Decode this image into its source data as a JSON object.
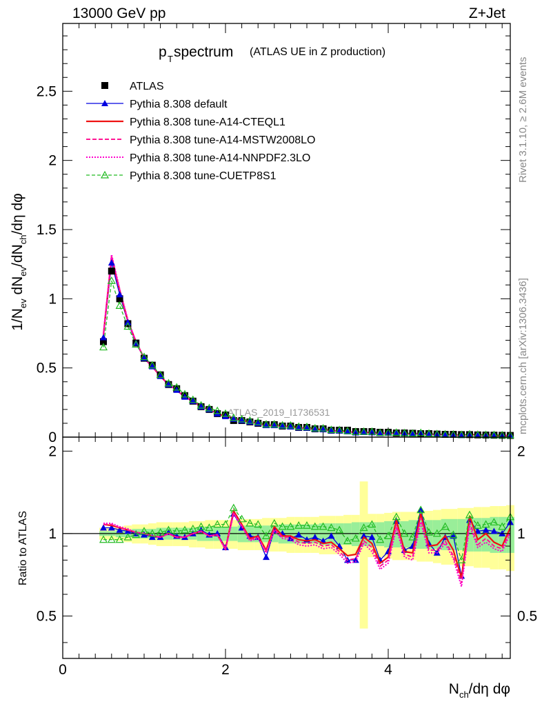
{
  "header": {
    "energy": "13000 GeV pp",
    "process": "Z+Jet"
  },
  "side_labels": {
    "rivet_prefix": "Rivet 3.1.10, ",
    "rivet_suffix": "≥ 2.6M events",
    "mcplots": "mcplots.cern.ch [arXiv:1306.3436]"
  },
  "watermark": "ATLAS_2019_I1736531",
  "colors": {
    "atlas": "#000000",
    "default": "#0000e0",
    "cteql1": "#ee1111",
    "mstw": "#ff1493",
    "nnpdf": "#ff00cc",
    "cuetp": "#22bb22",
    "band_outer": "#ffff99",
    "band_inner": "#99ee99"
  },
  "chart_data": [
    {
      "id": "main",
      "type": "scatter",
      "title_main": "p",
      "title_sub": "T",
      "title_rest": " spectrum",
      "title_note": "(ATLAS UE in Z production)",
      "ylabel": "1/N_ev dN_ev/dN_ch/dη dφ",
      "ylim": [
        0,
        2.99
      ],
      "xlim": [
        0,
        5.5
      ],
      "yticks": [
        0,
        0.5,
        1,
        1.5,
        2,
        2.5
      ],
      "ytick_labels": [
        "0",
        "0.5",
        "1",
        "1.5",
        "2",
        "2.5"
      ],
      "x": [
        0.5,
        0.6,
        0.7,
        0.8,
        0.9,
        1.0,
        1.1,
        1.2,
        1.3,
        1.4,
        1.5,
        1.6,
        1.7,
        1.8,
        1.9,
        2.0,
        2.1,
        2.2,
        2.3,
        2.4,
        2.5,
        2.6,
        2.7,
        2.8,
        2.9,
        3.0,
        3.1,
        3.2,
        3.3,
        3.4,
        3.5,
        3.6,
        3.7,
        3.8,
        3.9,
        4.0,
        4.1,
        4.2,
        4.3,
        4.4,
        4.5,
        4.6,
        4.7,
        4.8,
        4.9,
        5.0,
        5.1,
        5.2,
        5.3,
        5.4,
        5.5
      ],
      "series": [
        {
          "name": "ATLAS",
          "key": "atlas",
          "values": [
            0.69,
            1.2,
            1.0,
            0.82,
            0.68,
            0.57,
            0.52,
            0.45,
            0.38,
            0.35,
            0.3,
            0.26,
            0.22,
            0.2,
            0.17,
            0.16,
            0.12,
            0.12,
            0.11,
            0.1,
            0.09,
            0.09,
            0.08,
            0.08,
            0.07,
            0.07,
            0.06,
            0.06,
            0.05,
            0.05,
            0.05,
            0.04,
            0.04,
            0.04,
            0.035,
            0.035,
            0.03,
            0.03,
            0.028,
            0.025,
            0.025,
            0.022,
            0.02,
            0.02,
            0.018,
            0.018,
            0.016,
            0.015,
            0.014,
            0.013,
            0.012
          ]
        },
        {
          "name": "Pythia 8.308 default",
          "key": "default",
          "values": [
            0.72,
            1.26,
            1.03,
            0.83,
            0.68,
            0.57,
            0.51,
            0.44,
            0.38,
            0.34,
            0.29,
            0.26,
            0.22,
            0.2,
            0.17,
            0.15,
            0.13,
            0.12,
            0.11,
            0.1,
            0.085,
            0.085,
            0.08,
            0.075,
            0.068,
            0.066,
            0.058,
            0.056,
            0.047,
            0.045,
            0.04,
            0.032,
            0.035,
            0.033,
            0.028,
            0.03,
            0.03,
            0.026,
            0.024,
            0.029,
            0.022,
            0.019,
            0.019,
            0.018,
            0.013,
            0.018,
            0.016,
            0.015,
            0.014,
            0.013,
            0.012
          ]
        },
        {
          "name": "Pythia 8.308 tune-A14-CTEQL1",
          "key": "cteql1",
          "values": [
            0.74,
            1.3,
            1.06,
            0.84,
            0.69,
            0.57,
            0.51,
            0.44,
            0.38,
            0.34,
            0.29,
            0.26,
            0.22,
            0.2,
            0.17,
            0.15,
            0.14,
            0.12,
            0.11,
            0.1,
            0.082,
            0.088,
            0.078,
            0.078,
            0.066,
            0.065,
            0.057,
            0.055,
            0.046,
            0.044,
            0.041,
            0.033,
            0.034,
            0.032,
            0.027,
            0.029,
            0.031,
            0.026,
            0.023,
            0.027,
            0.022,
            0.02,
            0.019,
            0.017,
            0.012,
            0.019,
            0.016,
            0.015,
            0.013,
            0.012,
            0.012
          ]
        },
        {
          "name": "Pythia 8.308 tune-A14-MSTW2008LO",
          "key": "mstw",
          "values": [
            0.74,
            1.31,
            1.06,
            0.84,
            0.69,
            0.57,
            0.51,
            0.44,
            0.38,
            0.34,
            0.29,
            0.26,
            0.22,
            0.2,
            0.17,
            0.15,
            0.14,
            0.12,
            0.11,
            0.1,
            0.08,
            0.087,
            0.077,
            0.077,
            0.065,
            0.064,
            0.056,
            0.054,
            0.045,
            0.043,
            0.04,
            0.032,
            0.033,
            0.031,
            0.026,
            0.028,
            0.029,
            0.025,
            0.022,
            0.026,
            0.021,
            0.019,
            0.018,
            0.016,
            0.012,
            0.018,
            0.015,
            0.014,
            0.013,
            0.012,
            0.011
          ]
        },
        {
          "name": "Pythia 8.308 tune-A14-NNPDF2.3LO",
          "key": "nnpdf",
          "values": [
            0.75,
            1.32,
            1.07,
            0.85,
            0.69,
            0.57,
            0.51,
            0.44,
            0.38,
            0.34,
            0.29,
            0.26,
            0.22,
            0.2,
            0.17,
            0.15,
            0.14,
            0.12,
            0.11,
            0.1,
            0.08,
            0.086,
            0.077,
            0.076,
            0.064,
            0.063,
            0.055,
            0.053,
            0.044,
            0.042,
            0.039,
            0.031,
            0.032,
            0.03,
            0.025,
            0.027,
            0.028,
            0.024,
            0.021,
            0.025,
            0.02,
            0.018,
            0.017,
            0.015,
            0.011,
            0.017,
            0.015,
            0.014,
            0.012,
            0.011,
            0.011
          ]
        },
        {
          "name": "Pythia 8.308 tune-CUETP8S1",
          "key": "cuetp",
          "values": [
            0.65,
            1.13,
            0.95,
            0.8,
            0.67,
            0.58,
            0.52,
            0.45,
            0.39,
            0.36,
            0.31,
            0.27,
            0.23,
            0.21,
            0.19,
            0.17,
            0.14,
            0.13,
            0.12,
            0.11,
            0.093,
            0.093,
            0.086,
            0.085,
            0.076,
            0.074,
            0.064,
            0.064,
            0.053,
            0.052,
            0.045,
            0.038,
            0.04,
            0.04,
            0.032,
            0.035,
            0.033,
            0.03,
            0.027,
            0.031,
            0.026,
            0.023,
            0.021,
            0.02,
            0.017,
            0.021,
            0.018,
            0.017,
            0.016,
            0.015,
            0.014
          ]
        }
      ]
    },
    {
      "id": "ratio",
      "type": "line",
      "ylabel": "Ratio to ATLAS",
      "xlabel": "N_ch/dη dφ",
      "ylim": [
        0.35,
        2.25
      ],
      "xlim": [
        0,
        5.5
      ],
      "xticks": [
        0,
        2,
        4
      ],
      "xtick_labels": [
        "0",
        "2",
        "4"
      ],
      "yticks": [
        0.5,
        1,
        2
      ],
      "ytick_labels": [
        "0.5",
        "1",
        "2"
      ],
      "x": [
        0.5,
        0.6,
        0.7,
        0.8,
        0.9,
        1.0,
        1.1,
        1.2,
        1.3,
        1.4,
        1.5,
        1.6,
        1.7,
        1.8,
        1.9,
        2.0,
        2.1,
        2.2,
        2.3,
        2.4,
        2.5,
        2.6,
        2.7,
        2.8,
        2.9,
        3.0,
        3.1,
        3.2,
        3.3,
        3.4,
        3.5,
        3.6,
        3.7,
        3.8,
        3.9,
        4.0,
        4.1,
        4.2,
        4.3,
        4.4,
        4.5,
        4.6,
        4.7,
        4.8,
        4.9,
        5.0,
        5.1,
        5.2,
        5.3,
        5.4,
        5.5
      ],
      "band_outer": [
        0.05,
        0.05,
        0.06,
        0.07,
        0.08,
        0.08,
        0.09,
        0.1,
        0.1,
        0.1,
        0.1,
        0.11,
        0.11,
        0.12,
        0.12,
        0.12,
        0.12,
        0.13,
        0.13,
        0.13,
        0.14,
        0.14,
        0.14,
        0.15,
        0.15,
        0.15,
        0.15,
        0.16,
        0.16,
        0.16,
        0.17,
        0.17,
        0.55,
        0.18,
        0.18,
        0.19,
        0.2,
        0.2,
        0.2,
        0.21,
        0.21,
        0.22,
        0.23,
        0.23,
        0.24,
        0.24,
        0.25,
        0.25,
        0.26,
        0.26,
        0.27
      ],
      "band_inner": [
        0.02,
        0.02,
        0.03,
        0.03,
        0.04,
        0.04,
        0.04,
        0.05,
        0.05,
        0.05,
        0.05,
        0.05,
        0.06,
        0.06,
        0.06,
        0.06,
        0.06,
        0.07,
        0.07,
        0.07,
        0.07,
        0.07,
        0.08,
        0.08,
        0.08,
        0.08,
        0.08,
        0.09,
        0.09,
        0.09,
        0.09,
        0.1,
        0.1,
        0.1,
        0.1,
        0.11,
        0.11,
        0.11,
        0.12,
        0.12,
        0.12,
        0.12,
        0.13,
        0.13,
        0.13,
        0.14,
        0.14,
        0.14,
        0.15,
        0.15,
        0.15
      ],
      "series": [
        {
          "name": "Pythia 8.308 default",
          "key": "default",
          "values": [
            1.05,
            1.05,
            1.03,
            1.02,
            1.0,
            0.99,
            0.97,
            0.97,
            1.01,
            0.98,
            0.97,
            1.0,
            1.03,
            0.99,
            1.0,
            0.89,
            1.18,
            1.05,
            0.98,
            0.97,
            0.82,
            1.03,
            1.0,
            0.96,
            0.99,
            0.95,
            0.97,
            0.94,
            0.98,
            0.9,
            0.8,
            0.8,
            0.98,
            0.97,
            0.8,
            0.86,
            1.11,
            0.87,
            0.9,
            1.22,
            0.92,
            0.85,
            0.97,
            0.98,
            0.7,
            1.12,
            1.02,
            1.03,
            1.02,
            1.0,
            1.1
          ]
        },
        {
          "name": "Pythia 8.308 tune-A14-CTEQL1",
          "key": "cteql1",
          "values": [
            1.08,
            1.07,
            1.05,
            1.03,
            1.01,
            1.0,
            0.98,
            0.97,
            1.0,
            0.97,
            0.97,
            1.0,
            1.02,
            0.98,
            0.99,
            0.88,
            1.21,
            1.08,
            0.96,
            0.98,
            0.87,
            1.06,
            0.98,
            0.98,
            0.95,
            0.94,
            0.95,
            0.92,
            0.93,
            0.88,
            0.83,
            0.84,
            0.97,
            0.92,
            0.78,
            0.82,
            1.12,
            0.86,
            0.85,
            1.18,
            0.9,
            0.91,
            0.98,
            0.87,
            0.69,
            1.16,
            0.95,
            1.0,
            0.93,
            0.9,
            1.05
          ]
        },
        {
          "name": "Pythia 8.308 tune-A14-MSTW2008LO",
          "key": "mstw",
          "values": [
            1.08,
            1.08,
            1.05,
            1.03,
            1.01,
            1.0,
            0.98,
            0.97,
            1.0,
            0.97,
            0.97,
            1.0,
            1.02,
            0.98,
            0.99,
            0.88,
            1.19,
            1.07,
            0.95,
            0.97,
            0.86,
            1.04,
            0.97,
            0.97,
            0.93,
            0.92,
            0.93,
            0.9,
            0.91,
            0.86,
            0.8,
            0.81,
            0.94,
            0.89,
            0.76,
            0.8,
            1.08,
            0.84,
            0.82,
            1.14,
            0.87,
            0.87,
            0.94,
            0.83,
            0.66,
            1.1,
            0.91,
            0.96,
            0.9,
            0.88,
            1.02
          ]
        },
        {
          "name": "Pythia 8.308 tune-A14-NNPDF2.3LO",
          "key": "nnpdf",
          "values": [
            1.09,
            1.09,
            1.06,
            1.04,
            1.01,
            1.0,
            0.98,
            0.97,
            1.0,
            0.97,
            0.97,
            1.0,
            1.02,
            0.98,
            0.99,
            0.87,
            1.18,
            1.06,
            0.94,
            0.96,
            0.85,
            1.02,
            0.96,
            0.95,
            0.91,
            0.9,
            0.91,
            0.88,
            0.89,
            0.84,
            0.78,
            0.79,
            0.92,
            0.86,
            0.74,
            0.78,
            1.05,
            0.82,
            0.8,
            1.1,
            0.85,
            0.85,
            0.92,
            0.81,
            0.64,
            1.07,
            0.89,
            0.93,
            0.88,
            0.86,
            1.0
          ]
        },
        {
          "name": "Pythia 8.308 tune-CUETP8S1",
          "key": "cuetp",
          "values": [
            0.95,
            0.95,
            0.95,
            0.97,
            0.99,
            1.02,
            1.0,
            1.01,
            1.03,
            1.02,
            1.03,
            1.04,
            1.06,
            1.05,
            1.08,
            1.08,
            1.24,
            1.13,
            1.09,
            1.08,
            0.98,
            1.09,
            1.06,
            1.06,
            1.07,
            1.07,
            1.06,
            1.06,
            1.05,
            1.03,
            0.94,
            0.96,
            1.05,
            1.08,
            0.95,
            0.98,
            1.15,
            1.0,
            0.97,
            1.22,
            1.01,
            1.0,
            1.06,
            0.99,
            0.8,
            1.17,
            1.07,
            1.08,
            1.1,
            1.06,
            1.15
          ]
        }
      ]
    }
  ]
}
